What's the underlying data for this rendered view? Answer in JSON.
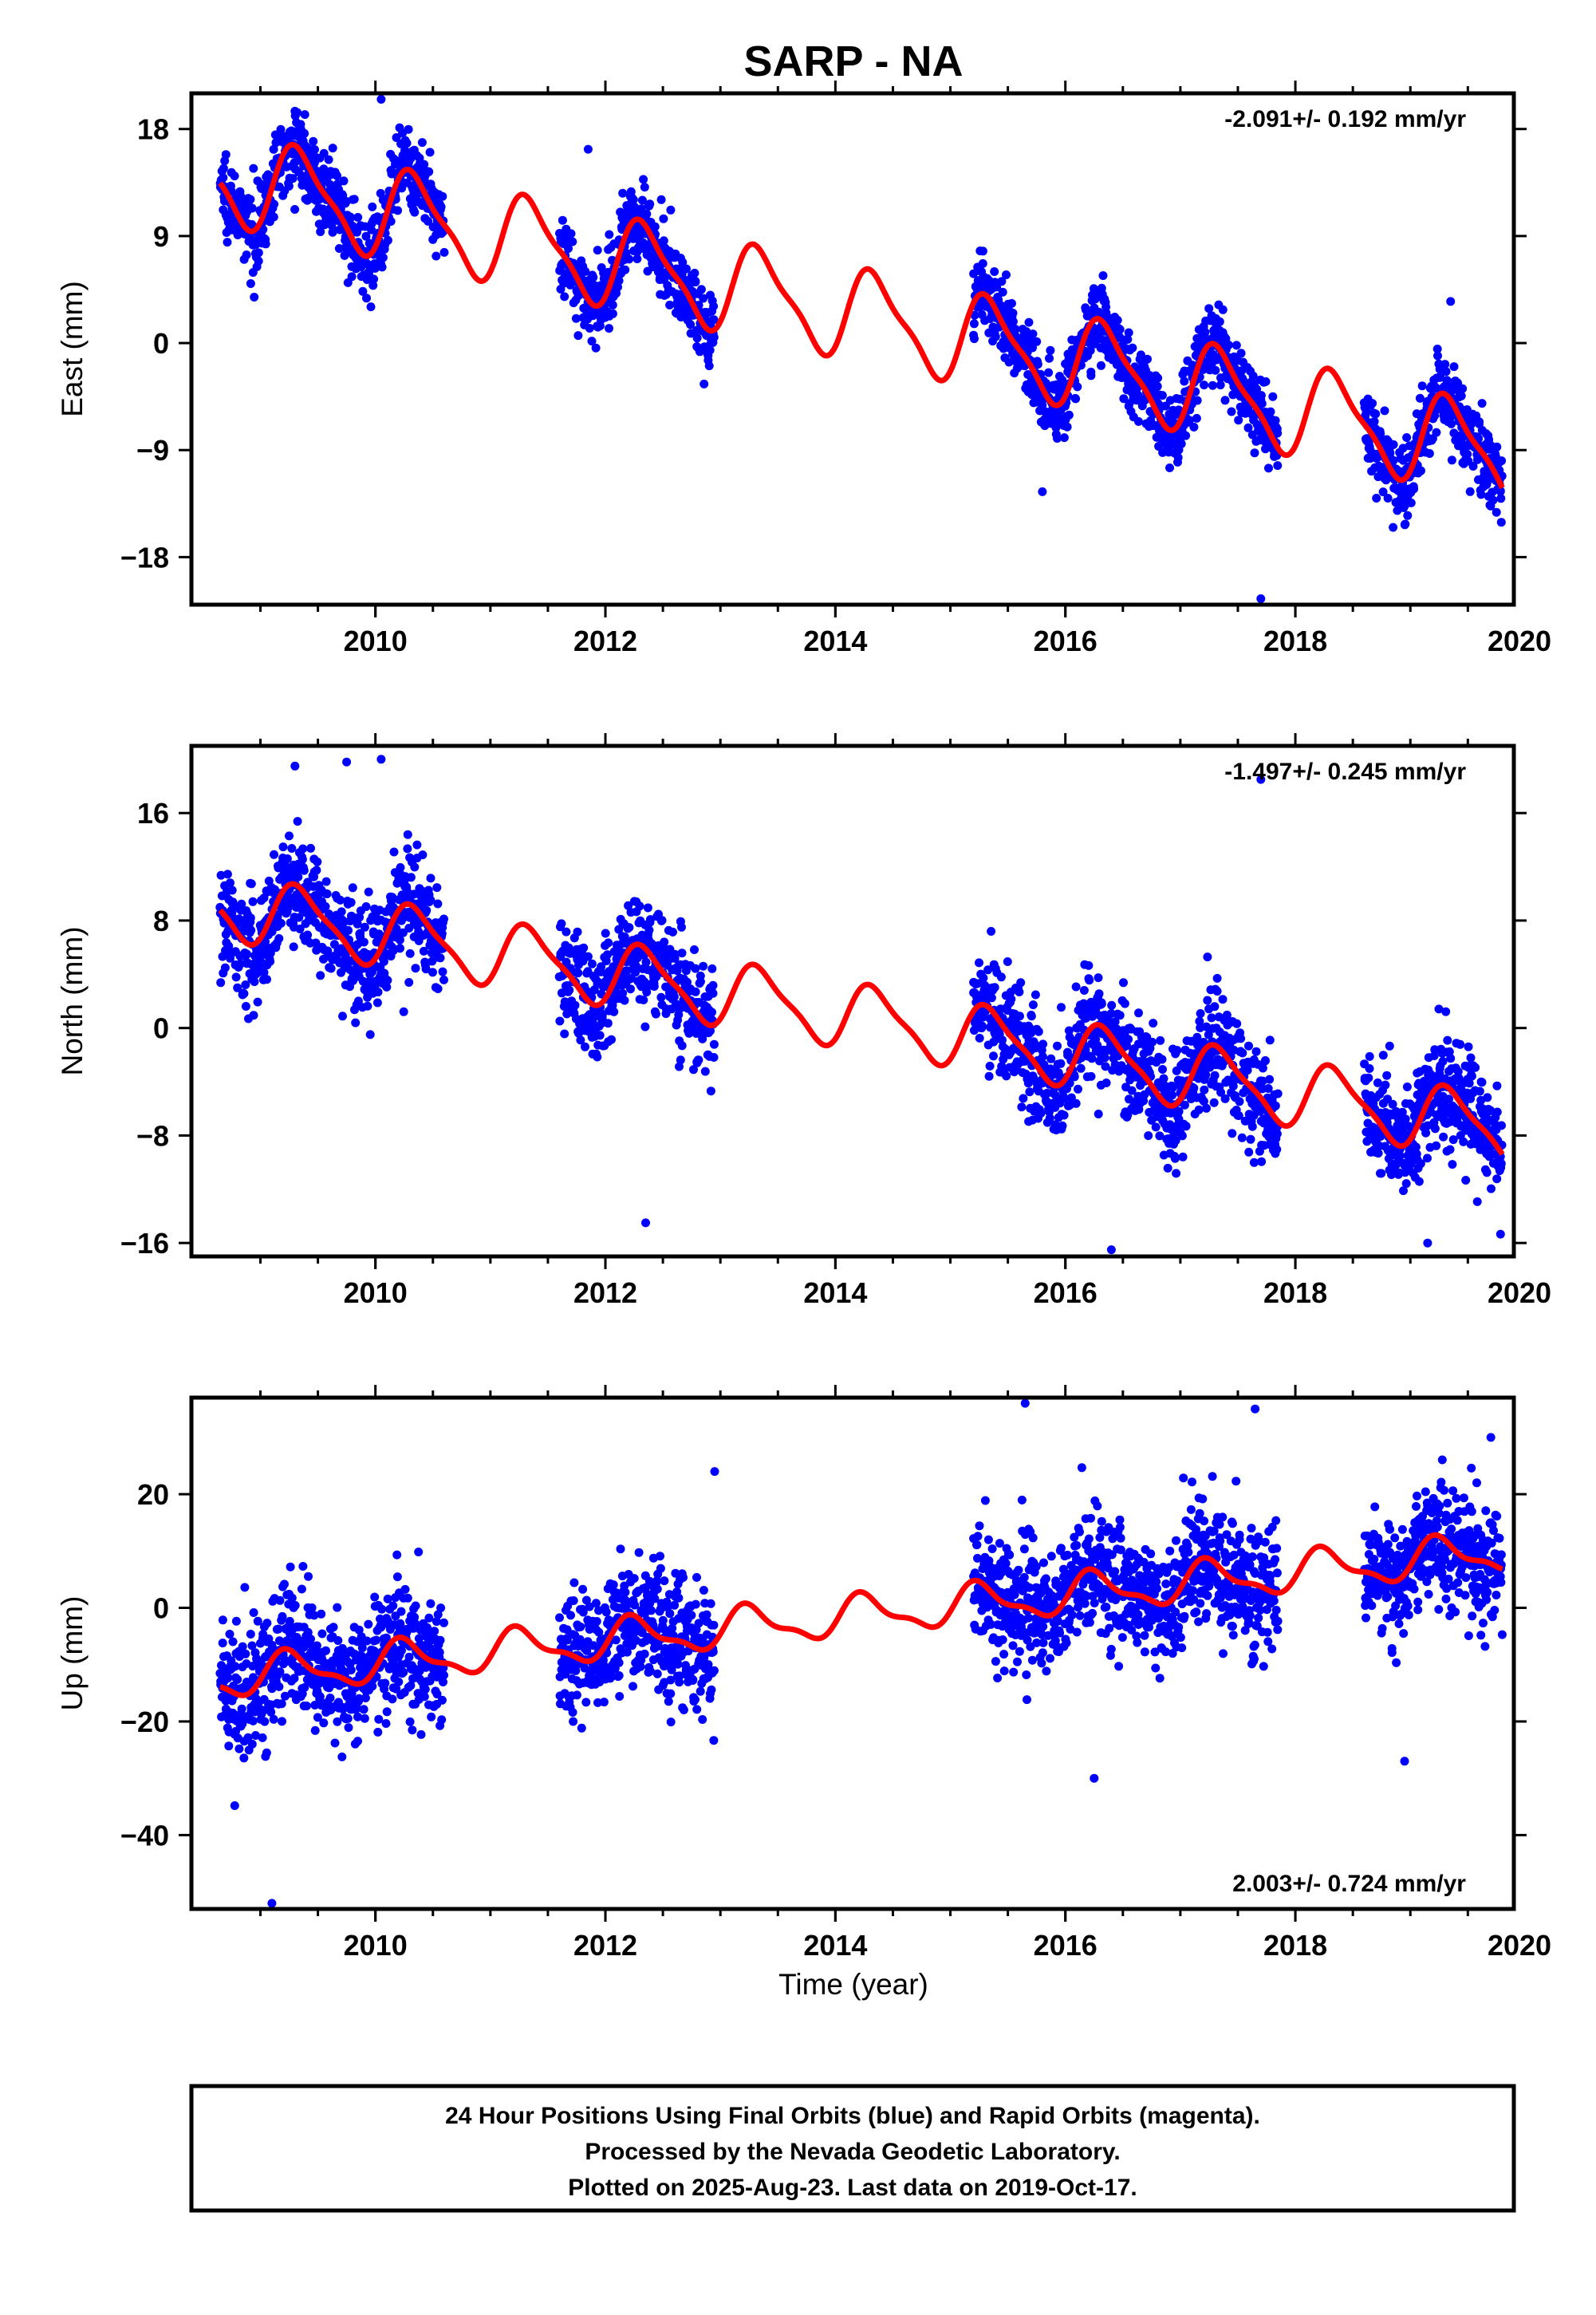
{
  "title": "SARP - NA",
  "xlabel": "Time (year)",
  "caption": [
    "24 Hour Positions Using Final Orbits (blue) and Rapid Orbits (magenta).",
    "Processed by the Nevada Geodetic Laboratory.",
    "Plotted on 2025-Aug-23. Last data on 2019-Oct-17."
  ],
  "colors": {
    "points": "#0000ff",
    "model": "#ff0000",
    "frame": "#000000"
  },
  "chart_data": [
    {
      "type": "scatter",
      "ylabel": "East (mm)",
      "rate_text": "-2.091+/- 0.192 mm/yr",
      "rate_position": "top-right",
      "xlim": [
        2008.4,
        2019.9
      ],
      "ylim": [
        -22,
        21
      ],
      "yticks": [
        18,
        9,
        0,
        -9,
        -18
      ],
      "yticklabels": [
        "18",
        "9",
        "0",
        "−9",
        "−18"
      ],
      "xticks": [
        2010,
        2012,
        2014,
        2016,
        2018,
        2020
      ],
      "xticklabels": [
        "2010",
        "2012",
        "2014",
        "2016",
        "2018",
        "2020"
      ],
      "model": {
        "offset": 14.5,
        "rate": -2.091,
        "annual": 3.6,
        "semiannual": 1.0,
        "phase": 0.0
      },
      "data_segments": [
        [
          2008.65,
          2010.6
        ],
        [
          2011.6,
          2012.95
        ],
        [
          2015.2,
          2017.85
        ],
        [
          2018.6,
          2019.8
        ]
      ],
      "scatter_sd": 1.6,
      "outliers": [
        [
          2009.3,
          19.5
        ],
        [
          2010.05,
          20.5
        ],
        [
          2011.85,
          16.3
        ],
        [
          2015.8,
          -12.5
        ],
        [
          2017.7,
          -21.5
        ],
        [
          2019.35,
          3.5
        ],
        [
          2018.85,
          -15.5
        ]
      ]
    },
    {
      "type": "scatter",
      "ylabel": "North (mm)",
      "rate_text": "-1.497+/- 0.245 mm/yr",
      "rate_position": "top-right",
      "xlim": [
        2008.4,
        2019.9
      ],
      "ylim": [
        -17,
        21
      ],
      "yticks": [
        16,
        8,
        0,
        -8,
        -16
      ],
      "yticklabels": [
        "16",
        "8",
        "0",
        "−8",
        "−16"
      ],
      "xticks": [
        2010,
        2012,
        2014,
        2016,
        2018,
        2020
      ],
      "xticklabels": [
        "2010",
        "2012",
        "2014",
        "2016",
        "2018",
        "2020"
      ],
      "model": {
        "offset": 9.5,
        "rate": -1.497,
        "annual": 2.3,
        "semiannual": 0.6,
        "phase": 0.0
      },
      "data_segments": [
        [
          2008.65,
          2010.6
        ],
        [
          2011.6,
          2012.95
        ],
        [
          2015.2,
          2017.85
        ],
        [
          2018.6,
          2019.8
        ]
      ],
      "scatter_sd": 2.0,
      "outliers": [
        [
          2009.3,
          19.5
        ],
        [
          2009.75,
          19.8
        ],
        [
          2010.05,
          20.0
        ],
        [
          2012.35,
          -14.5
        ],
        [
          2016.4,
          -16.5
        ],
        [
          2017.7,
          18.5
        ],
        [
          2019.15,
          -16.0
        ]
      ]
    },
    {
      "type": "scatter",
      "ylabel": "Up (mm)",
      "rate_text": "2.003+/- 0.724 mm/yr",
      "rate_position": "bottom-right",
      "xlim": [
        2008.4,
        2019.9
      ],
      "ylim": [
        -53,
        37
      ],
      "yticks": [
        20,
        0,
        -20,
        -40
      ],
      "yticklabels": [
        "20",
        "0",
        "−20",
        "−40"
      ],
      "xticks": [
        2010,
        2012,
        2014,
        2016,
        2018,
        2020
      ],
      "xticklabels": [
        "2010",
        "2012",
        "2014",
        "2016",
        "2018",
        "2020"
      ],
      "model": {
        "offset": -13.0,
        "rate": 2.003,
        "annual": 3.2,
        "semiannual": 1.2,
        "phase": 0.6
      },
      "data_segments": [
        [
          2008.65,
          2010.6
        ],
        [
          2011.6,
          2012.95
        ],
        [
          2015.2,
          2017.85
        ],
        [
          2018.6,
          2019.8
        ]
      ],
      "scatter_sd": 5.5,
      "outliers": [
        [
          2009.1,
          -52
        ],
        [
          2012.95,
          24
        ],
        [
          2015.65,
          36
        ],
        [
          2016.25,
          -30
        ],
        [
          2017.65,
          35
        ],
        [
          2019.7,
          30
        ],
        [
          2018.95,
          -27
        ]
      ]
    }
  ]
}
